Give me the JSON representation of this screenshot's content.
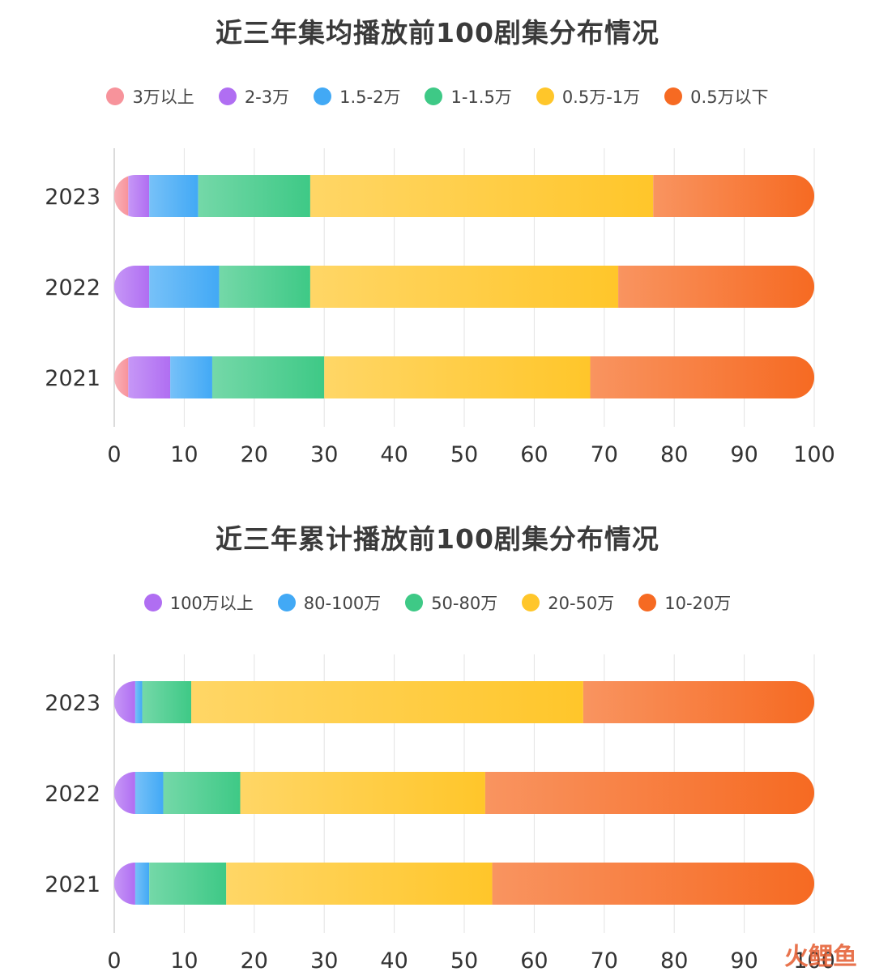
{
  "watermark": "火鲤鱼",
  "chart_data": [
    {
      "type": "bar",
      "orientation": "horizontal",
      "stacked": true,
      "title": "近三年集均播放前100剧集分布情况",
      "categories": [
        "2023",
        "2022",
        "2021"
      ],
      "xlim": [
        0,
        100
      ],
      "xticks": [
        0,
        10,
        20,
        30,
        40,
        50,
        60,
        70,
        80,
        90,
        100
      ],
      "grid": "vertical",
      "legend_position": "top",
      "series": [
        {
          "name": "3万以上",
          "color": "#f7939b",
          "values": [
            2,
            0,
            2
          ]
        },
        {
          "name": "2-3万",
          "color": "#b06ef2",
          "values": [
            3,
            5,
            6
          ]
        },
        {
          "name": "1.5-2万",
          "color": "#42a9f5",
          "values": [
            7,
            10,
            6
          ]
        },
        {
          "name": "1-1.5万",
          "color": "#3ec986",
          "values": [
            16,
            13,
            16
          ]
        },
        {
          "name": "0.5万-1万",
          "color": "#ffc62a",
          "values": [
            49,
            44,
            38
          ]
        },
        {
          "name": "0.5万以下",
          "color": "#f66a22",
          "values": [
            23,
            28,
            32
          ]
        }
      ]
    },
    {
      "type": "bar",
      "orientation": "horizontal",
      "stacked": true,
      "title": "近三年累计播放前100剧集分布情况",
      "categories": [
        "2023",
        "2022",
        "2021"
      ],
      "xlim": [
        0,
        100
      ],
      "xticks": [
        0,
        10,
        20,
        30,
        40,
        50,
        60,
        70,
        80,
        90,
        100
      ],
      "grid": "vertical",
      "legend_position": "top",
      "series": [
        {
          "name": "100万以上",
          "color": "#b06ef2",
          "values": [
            3,
            3,
            3
          ]
        },
        {
          "name": "80-100万",
          "color": "#42a9f5",
          "values": [
            1,
            4,
            2
          ]
        },
        {
          "name": "50-80万",
          "color": "#3ec986",
          "values": [
            7,
            11,
            11
          ]
        },
        {
          "name": "20-50万",
          "color": "#ffc62a",
          "values": [
            56,
            35,
            38
          ]
        },
        {
          "name": "10-20万",
          "color": "#f66a22",
          "values": [
            33,
            47,
            46
          ]
        }
      ]
    }
  ]
}
